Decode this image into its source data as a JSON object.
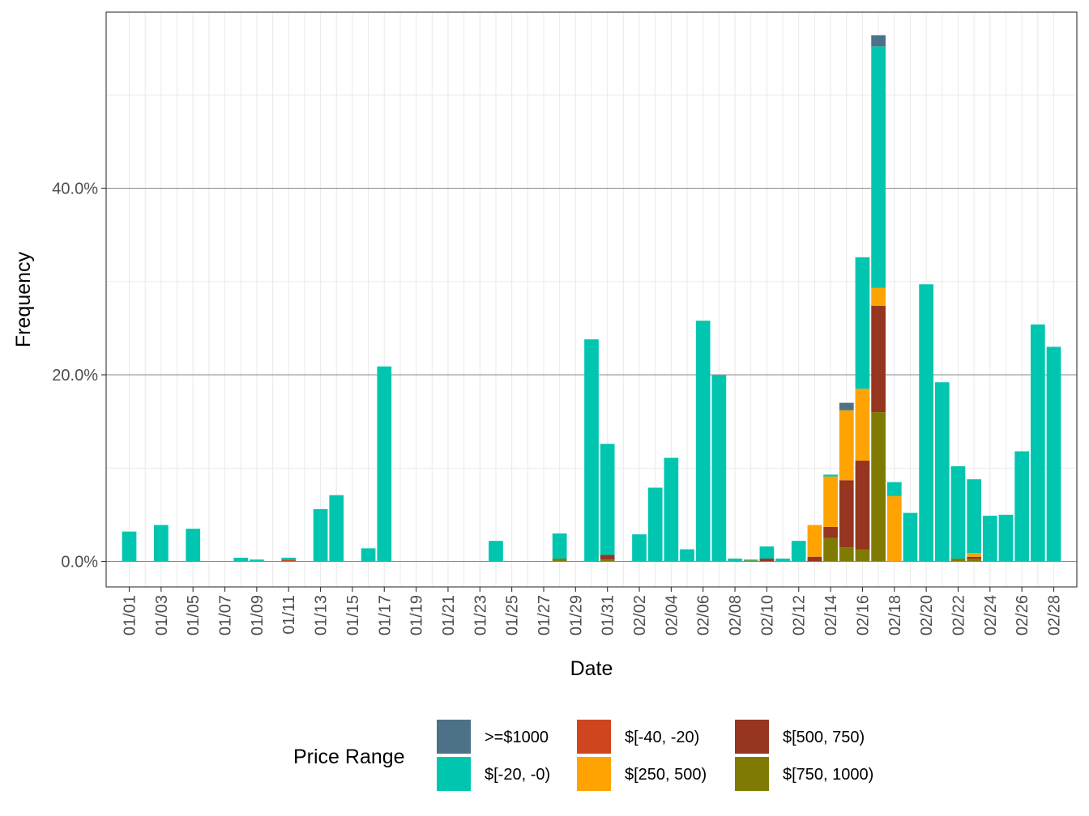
{
  "chart_data": {
    "type": "bar",
    "stacked": true,
    "xlabel": "Date",
    "ylabel": "Frequency",
    "ylim": [
      -2.7,
      58.5
    ],
    "yticks": [
      0,
      20,
      40
    ],
    "ytick_labels": [
      "0.0%",
      "20.0%",
      "40.0%"
    ],
    "grid": true,
    "legend_position": "bottom",
    "legend_title": "Price Range",
    "x": [
      "01/01",
      "01/02",
      "01/03",
      "01/04",
      "01/05",
      "01/06",
      "01/07",
      "01/08",
      "01/09",
      "01/10",
      "01/11",
      "01/12",
      "01/13",
      "01/14",
      "01/15",
      "01/16",
      "01/17",
      "01/18",
      "01/19",
      "01/20",
      "01/21",
      "01/22",
      "01/23",
      "01/24",
      "01/25",
      "01/26",
      "01/27",
      "01/28",
      "01/29",
      "01/30",
      "01/31",
      "02/01",
      "02/02",
      "02/03",
      "02/04",
      "02/05",
      "02/06",
      "02/07",
      "02/08",
      "02/09",
      "02/10",
      "02/11",
      "02/12",
      "02/13",
      "02/14",
      "02/15",
      "02/16",
      "02/17",
      "02/18",
      "02/19",
      "02/20",
      "02/21",
      "02/22",
      "02/23",
      "02/24",
      "02/25",
      "02/26",
      "02/27",
      "02/28"
    ],
    "xtick_labels": [
      "01/01",
      "01/03",
      "01/05",
      "01/07",
      "01/09",
      "01/11",
      "01/13",
      "01/15",
      "01/17",
      "01/19",
      "01/21",
      "01/23",
      "01/25",
      "01/27",
      "01/29",
      "01/31",
      "02/02",
      "02/04",
      "02/06",
      "02/08",
      "02/10",
      "02/12",
      "02/14",
      "02/16",
      "02/18",
      "02/20",
      "02/22",
      "02/24",
      "02/26",
      "02/28"
    ],
    "series": [
      {
        "name": "$[750, 1000)",
        "color": "#7f7b02",
        "values": [
          0,
          0,
          0,
          0,
          0,
          0,
          0,
          0,
          0,
          0,
          0,
          0,
          0,
          0,
          0,
          0,
          0,
          0,
          0,
          0,
          0,
          0,
          0,
          0,
          0,
          0,
          0,
          0.3,
          0,
          0,
          0.2,
          0,
          0,
          0,
          0,
          0,
          0,
          0,
          0,
          0.1,
          0,
          0,
          0,
          0,
          2.5,
          1.5,
          1.3,
          16.0,
          0,
          0,
          0,
          0,
          0.3,
          0.3,
          0,
          0,
          0,
          0,
          0
        ]
      },
      {
        "name": "$[500, 750)",
        "color": "#963520",
        "values": [
          0,
          0,
          0,
          0,
          0,
          0,
          0,
          0,
          0,
          0,
          0,
          0,
          0,
          0,
          0,
          0,
          0,
          0,
          0,
          0,
          0,
          0,
          0,
          0,
          0,
          0,
          0,
          0,
          0,
          0,
          0.5,
          0,
          0,
          0,
          0,
          0,
          0,
          0,
          0,
          0,
          0.3,
          0,
          0,
          0.5,
          1.2,
          7.2,
          9.5,
          11.4,
          0,
          0,
          0,
          0,
          0,
          0.2,
          0,
          0,
          0,
          0,
          0
        ]
      },
      {
        "name": "$[250, 500)",
        "color": "#fea301",
        "values": [
          0,
          0,
          0,
          0,
          0,
          0,
          0,
          0,
          0,
          0,
          0,
          0,
          0,
          0,
          0,
          0,
          0,
          0,
          0,
          0,
          0,
          0,
          0,
          0,
          0,
          0,
          0,
          0,
          0,
          0,
          0,
          0,
          0,
          0,
          0,
          0,
          0,
          0,
          0,
          0,
          0,
          0,
          0,
          3.4,
          5.4,
          7.5,
          7.7,
          1.9,
          7.0,
          0,
          0,
          0,
          0,
          0.4,
          0,
          0,
          0,
          0,
          0
        ]
      },
      {
        "name": "$[-40, -20)",
        "color": "#cf4520",
        "values": [
          0,
          0,
          0,
          0,
          0,
          0,
          0,
          0,
          0,
          0,
          0.2,
          0,
          0,
          0,
          0,
          0,
          0,
          0,
          0,
          0,
          0,
          0,
          0,
          0,
          0,
          0,
          0,
          0,
          0,
          0,
          0,
          0,
          0,
          0,
          0,
          0,
          0,
          0,
          0,
          0,
          0,
          0,
          0,
          0,
          0,
          0,
          0,
          0,
          0,
          0,
          0,
          0,
          0,
          0,
          0,
          0,
          0,
          0,
          0
        ]
      },
      {
        "name": "$[-20, -0)",
        "color": "#00c6b0",
        "values": [
          3.2,
          0,
          3.9,
          0,
          3.5,
          0,
          0,
          0.4,
          0.2,
          0,
          0.2,
          0,
          5.6,
          7.1,
          0,
          1.4,
          20.9,
          0,
          0,
          0,
          0,
          0,
          0,
          2.2,
          0,
          0,
          0,
          2.7,
          0,
          23.8,
          11.9,
          0,
          2.9,
          7.9,
          11.1,
          1.3,
          25.8,
          20.0,
          0.3,
          0.1,
          1.3,
          0.3,
          2.2,
          0,
          0.2,
          0,
          14.1,
          25.9,
          1.5,
          5.2,
          29.7,
          19.2,
          9.9,
          7.9,
          4.9,
          5.0,
          11.8,
          25.4,
          23.0
        ]
      },
      {
        "name": ">=$1000",
        "color": "#4d7187",
        "values": [
          0,
          0,
          0,
          0,
          0,
          0,
          0,
          0,
          0,
          0,
          0,
          0,
          0,
          0,
          0,
          0,
          0,
          0,
          0,
          0,
          0,
          0,
          0,
          0,
          0,
          0,
          0,
          0,
          0,
          0,
          0,
          0,
          0,
          0,
          0,
          0,
          0,
          0,
          0,
          0,
          0,
          0,
          0,
          0,
          0,
          0.8,
          0,
          1.2,
          0,
          0,
          0,
          0,
          0,
          0,
          0,
          0,
          0,
          0,
          0
        ]
      }
    ],
    "legend_order": [
      ">=$1000",
      "$[-20, -0)",
      "$[-40, -20)",
      "$[250, 500)",
      "$[500, 750)",
      "$[750, 1000)"
    ]
  }
}
